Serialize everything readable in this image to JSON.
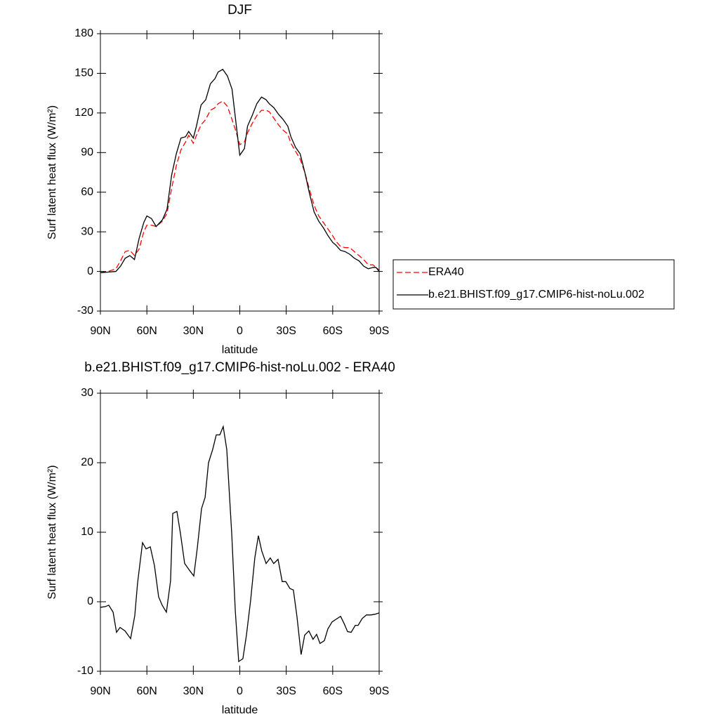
{
  "chart_data": [
    {
      "type": "line",
      "title": "DJF",
      "x_label": "latitude",
      "y_label": "Surf latent heat flux (W/m²)",
      "x": [
        90,
        85,
        80,
        77,
        74,
        71,
        68,
        65,
        62,
        60,
        57,
        54,
        50,
        47,
        44,
        41,
        38,
        35,
        33,
        30,
        28,
        25,
        22,
        19,
        16,
        14,
        11,
        8,
        5,
        3,
        0,
        -3,
        -5,
        -8,
        -11,
        -14,
        -17,
        -19,
        -22,
        -25,
        -28,
        -31,
        -33,
        -36,
        -39,
        -42,
        -45,
        -48,
        -51,
        -54,
        -57,
        -60,
        -62,
        -65,
        -68,
        -71,
        -74,
        -77,
        -80,
        -83,
        -86,
        -88,
        -90
      ],
      "series": [
        {
          "name": "ERA40",
          "color": "#ff0000",
          "dash": true,
          "values": [
            -1,
            0,
            2,
            8,
            15,
            16,
            12,
            17,
            30,
            35,
            35,
            34,
            38,
            44,
            63,
            80,
            92,
            98,
            103,
            97,
            103,
            111,
            115,
            122,
            124,
            127,
            129,
            125,
            115,
            108,
            96,
            98,
            105,
            112,
            118,
            122,
            122,
            121,
            116,
            111,
            107,
            104,
            97,
            91,
            85,
            75,
            62,
            50,
            42,
            37,
            32,
            27,
            23,
            19,
            18,
            18,
            15,
            12,
            9,
            5,
            5,
            3,
            1
          ]
        },
        {
          "name": "b.e21.BHIST.f09_g17.CMIP6-hist-noLu.002",
          "color": "#000000",
          "dash": false,
          "values": [
            -1,
            -0.5,
            0,
            4,
            10,
            12,
            9,
            25,
            37,
            42,
            40,
            34,
            39,
            47,
            73,
            89,
            101,
            102,
            106,
            101,
            110,
            126,
            130,
            142,
            146,
            151,
            153,
            148,
            138,
            118,
            88,
            93,
            110,
            118,
            127,
            132,
            130,
            127,
            124,
            119,
            115,
            110,
            102,
            94,
            89,
            75,
            59,
            45,
            38,
            33,
            27,
            22,
            20,
            16,
            15,
            13,
            10,
            8,
            4,
            2,
            3,
            3,
            0
          ]
        }
      ],
      "xlim": [
        90,
        -90
      ],
      "xticks": [
        {
          "value": 90,
          "label": "90N"
        },
        {
          "value": 60,
          "label": "60N"
        },
        {
          "value": 30,
          "label": "30N"
        },
        0,
        {
          "value": -30,
          "label": "30S"
        },
        {
          "value": -60,
          "label": "60S"
        },
        {
          "value": -90,
          "label": "90S"
        }
      ],
      "ylim": [
        -30,
        180
      ],
      "yticks": [
        180,
        150,
        120,
        90,
        60,
        30,
        0,
        -30
      ],
      "legend": "right"
    },
    {
      "type": "line",
      "title": "b.e21.BHIST.f09_g17.CMIP6-hist-noLu.002 - ERA40",
      "x_label": "latitude",
      "y_label": "Surf latent heat flux (W/m²)",
      "x": [
        90,
        86.8,
        84.6,
        81.8,
        79.6,
        77.3,
        74.1,
        70.5,
        67.8,
        66,
        62.8,
        60.5,
        57.8,
        55.1,
        52.4,
        50.1,
        47.4,
        44.7,
        43.3,
        40.6,
        38.3,
        35.6,
        32.4,
        29.7,
        27.4,
        24.7,
        22.4,
        20.2,
        17.5,
        15.2,
        12.9,
        10.7,
        8.4,
        5.2,
        2.9,
        0.7,
        -2,
        -4.3,
        -7,
        -9.7,
        -12,
        -14.2,
        -17,
        -19.7,
        -21.9,
        -24.7,
        -27.4,
        -29.7,
        -32.4,
        -34.6,
        -36.9,
        -39.6,
        -41.9,
        -44.6,
        -47.3,
        -49.6,
        -51.8,
        -54.6,
        -56.9,
        -59.6,
        -62.3,
        -65.1,
        -67.3,
        -69.6,
        -71.9,
        -74.6,
        -76.4,
        -79.1,
        -81.8,
        -84.6,
        -87.3,
        -90
      ],
      "values": [
        -0.8,
        -0.7,
        -0.5,
        -1.5,
        -4.4,
        -3.7,
        -4.2,
        -5.3,
        -2,
        2.7,
        8.5,
        7.6,
        7.9,
        5.2,
        0.7,
        -0.5,
        -1.5,
        3,
        12.7,
        13,
        9.8,
        5.5,
        4.5,
        3.7,
        7.8,
        13.4,
        15,
        20,
        21.9,
        24,
        24,
        25.2,
        21.9,
        9.8,
        -1.3,
        -8.6,
        -8.2,
        -4.8,
        0.2,
        6.3,
        9.5,
        7.3,
        5.5,
        6.3,
        5.5,
        6.1,
        2.9,
        2.9,
        1.9,
        1.7,
        -2.1,
        -7.6,
        -4.8,
        -4.2,
        -5.4,
        -4.7,
        -6,
        -5.6,
        -3.9,
        -2.9,
        -2.5,
        -2.1,
        -3.1,
        -4.3,
        -4.4,
        -3.4,
        -3.4,
        -2.4,
        -1.9,
        -1.9,
        -1.8,
        -1.6
      ],
      "color": "#000000",
      "xlim": [
        90,
        -90
      ],
      "xticks": [
        {
          "value": 90,
          "label": "90N"
        },
        {
          "value": 60,
          "label": "60N"
        },
        {
          "value": 30,
          "label": "30N"
        },
        0,
        {
          "value": -30,
          "label": "30S"
        },
        {
          "value": -60,
          "label": "60S"
        },
        {
          "value": -90,
          "label": "90S"
        }
      ],
      "ylim": [
        -10,
        30
      ],
      "yticks": [
        30,
        20,
        10,
        0,
        -10
      ]
    }
  ]
}
